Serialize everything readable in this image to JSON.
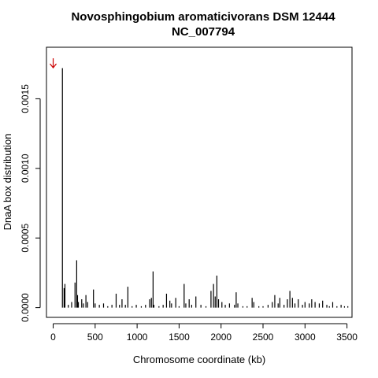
{
  "chart_data": {
    "type": "bar",
    "title": "Novosphingobium aromaticivorans DSM 12444",
    "subtitle": "NC_007794",
    "xlabel": "Chromosome coordinate (kb)",
    "ylabel": "DnaA box distribution",
    "xlim": [
      -80,
      3560
    ],
    "ylim": [
      -7e-05,
      0.00187
    ],
    "x_ticks": [
      0,
      500,
      1000,
      1500,
      2000,
      2500,
      3000,
      3500
    ],
    "y_ticks": [
      0.0,
      0.0005,
      0.001,
      0.0015
    ],
    "y_tick_labels": [
      "0.0000",
      "0.0005",
      "0.0010",
      "0.0015"
    ],
    "grid": false,
    "marker": {
      "x": 0,
      "color": "#cc0000",
      "shape": "arrow-down"
    },
    "x": [
      110,
      130,
      140,
      180,
      220,
      260,
      280,
      290,
      300,
      340,
      360,
      390,
      410,
      480,
      500,
      550,
      600,
      650,
      700,
      750,
      790,
      820,
      860,
      890,
      940,
      990,
      1050,
      1100,
      1150,
      1170,
      1190,
      1200,
      1260,
      1310,
      1350,
      1390,
      1410,
      1460,
      1500,
      1560,
      1580,
      1620,
      1650,
      1700,
      1760,
      1820,
      1880,
      1910,
      1930,
      1950,
      1970,
      2010,
      2050,
      2100,
      2160,
      2180,
      2200,
      2260,
      2310,
      2370,
      2390,
      2450,
      2500,
      2560,
      2610,
      2640,
      2680,
      2700,
      2750,
      2790,
      2820,
      2850,
      2880,
      2920,
      2970,
      3000,
      3050,
      3080,
      3120,
      3170,
      3210,
      3260,
      3290,
      3330,
      3380,
      3430,
      3470,
      3510
    ],
    "values": [
      0.00172,
      0.00014,
      0.00017,
      2e-05,
      4e-05,
      0.00018,
      0.00034,
      9e-05,
      4e-05,
      6e-05,
      3e-05,
      9e-05,
      4e-05,
      0.00013,
      3e-05,
      2e-05,
      3e-05,
      1e-05,
      2e-05,
      0.0001,
      2e-05,
      6e-05,
      2e-05,
      0.00015,
      1e-05,
      2e-05,
      1e-05,
      2e-05,
      6e-05,
      7e-05,
      0.00026,
      2e-05,
      1e-05,
      2e-05,
      0.0001,
      5e-05,
      3e-05,
      7e-05,
      1e-05,
      0.00017,
      3e-05,
      6e-05,
      2e-05,
      8e-05,
      2e-05,
      1e-05,
      0.00012,
      0.00017,
      8e-05,
      0.00023,
      6e-05,
      4e-05,
      2e-05,
      3e-05,
      2e-05,
      0.00011,
      3e-05,
      1e-05,
      1e-05,
      7e-05,
      4e-05,
      1e-05,
      1e-05,
      2e-05,
      4e-05,
      9e-05,
      3e-05,
      7e-05,
      2e-05,
      6e-05,
      0.00012,
      7e-05,
      3e-05,
      6e-05,
      2e-05,
      4e-05,
      3e-05,
      6e-05,
      4e-05,
      3e-05,
      5e-05,
      2e-05,
      1e-05,
      4e-05,
      1e-05,
      2e-05,
      1e-05,
      1e-05
    ]
  }
}
